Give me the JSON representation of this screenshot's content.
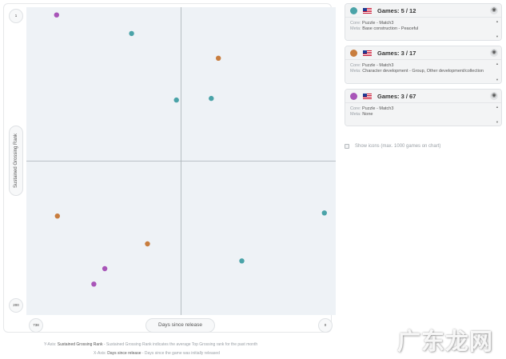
{
  "chart_data": {
    "type": "scatter",
    "x_axis": {
      "label": "Days since release",
      "left_tick": "738",
      "right_tick": "0",
      "reversed": true,
      "range": [
        738,
        0
      ]
    },
    "y_axis": {
      "label": "Sustained Grossing Rank",
      "top_tick": "1",
      "bottom_tick": "200",
      "reversed": true,
      "range": [
        1,
        200
      ]
    },
    "quadrant_lines": true,
    "series": [
      {
        "color": "#4aa3a8",
        "points": [
          {
            "x": 487,
            "y": 18
          },
          {
            "x": 380,
            "y": 61
          },
          {
            "x": 297,
            "y": 60
          },
          {
            "x": 27,
            "y": 134
          },
          {
            "x": 224,
            "y": 165
          }
        ]
      },
      {
        "color": "#c87d3e",
        "points": [
          {
            "x": 280,
            "y": 34
          },
          {
            "x": 664,
            "y": 136
          },
          {
            "x": 449,
            "y": 154
          }
        ]
      },
      {
        "color": "#a855b8",
        "points": [
          {
            "x": 666,
            "y": 6
          },
          {
            "x": 551,
            "y": 170
          },
          {
            "x": 577,
            "y": 180
          }
        ]
      }
    ]
  },
  "games": [
    {
      "color": "#4aa3a8",
      "title": "Games: 5 / 12",
      "core_label": "Core:",
      "core": "Puzzle - Match3",
      "meta_label": "Meta:",
      "meta": "Base construction - Peaceful"
    },
    {
      "color": "#c87d3e",
      "title": "Games: 3 / 17",
      "core_label": "Core:",
      "core": "Puzzle - Match3",
      "meta_label": "Meta:",
      "meta": "Character development - Group, Other development/collection"
    },
    {
      "color": "#a855b8",
      "title": "Games: 3 / 67",
      "core_label": "Core:",
      "core": "Puzzle - Match3",
      "meta_label": "Meta:",
      "meta": "None"
    }
  ],
  "icons": {
    "eye": "eye-icon",
    "flag": "us-flag-icon",
    "scroll_up": "chevron-up-icon",
    "scroll_down": "chevron-down-icon"
  },
  "show_icons": {
    "label": "Show icons (max. 1000 games on chart)",
    "checked": false
  },
  "footnotes": {
    "y_prefix": "Y-Axis:",
    "y_name": "Sustained Grossing Rank",
    "y_desc": "- Sustained Grossing Rank indicates the average Top Grossing rank for the past month",
    "x_prefix": "X-Axis:",
    "x_name": "Days since release",
    "x_desc": "- Days since the game was initially released"
  },
  "watermark": "广东龙网"
}
